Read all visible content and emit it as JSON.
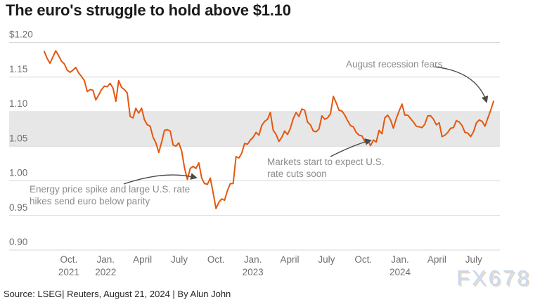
{
  "title": "The euro's struggle to hold above $1.10",
  "source_line": "Source: LSEG| Reuters, August 21, 2024 | By Alun John",
  "watermark": "FX678",
  "colors": {
    "line": "#e5570f",
    "band": "#e7e7e7",
    "gridline": "#d8d8d8",
    "axis_text": "#6f6f6f",
    "annotation_text": "#8c8c8c",
    "arrow": "#4a4a4a",
    "title_text": "#1a1a1a",
    "source_text": "#262626",
    "watermark_fill": "#c9d9ef"
  },
  "annotations": [
    {
      "id": "energy-price-spike",
      "text": "Energy price spike and large U.S. rate\nhikes send euro below parity"
    },
    {
      "id": "rate-cut-expectations",
      "text": "Markets start to expect U.S.\nrate cuts soon"
    },
    {
      "id": "august-recession-fears",
      "text": "August recession fears"
    }
  ],
  "chart_data": {
    "type": "line",
    "title": "The euro's struggle to hold above $1.10",
    "xlabel": "",
    "ylabel": "",
    "grid": true,
    "legend": false,
    "y_axis": {
      "range": [
        0.9,
        1.2
      ],
      "ticks": [
        {
          "label": "$1.20",
          "value": 1.2
        },
        {
          "label": "1.15",
          "value": 1.15
        },
        {
          "label": "1.10",
          "value": 1.1
        },
        {
          "label": "1.05",
          "value": 1.05
        },
        {
          "label": "1.00",
          "value": 1.0
        },
        {
          "label": "0.95",
          "value": 0.95
        },
        {
          "label": "0.90",
          "value": 0.9
        }
      ],
      "highlight_band": {
        "from": 1.05,
        "to": 1.1
      }
    },
    "x_axis": {
      "start": "2021-08",
      "end": "2024-08",
      "ticks": [
        {
          "label": "Oct.",
          "year": "2021",
          "month_index": 2
        },
        {
          "label": "Jan.",
          "year": "2022",
          "month_index": 5
        },
        {
          "label": "April",
          "year": "",
          "month_index": 8
        },
        {
          "label": "July",
          "year": "",
          "month_index": 11
        },
        {
          "label": "Oct.",
          "year": "",
          "month_index": 14
        },
        {
          "label": "Jan.",
          "year": "2023",
          "month_index": 17
        },
        {
          "label": "April",
          "year": "",
          "month_index": 20
        },
        {
          "label": "July",
          "year": "",
          "month_index": 23
        },
        {
          "label": "Oct.",
          "year": "",
          "month_index": 26
        },
        {
          "label": "Jan.",
          "year": "2024",
          "month_index": 29
        },
        {
          "label": "April",
          "year": "",
          "month_index": 32
        },
        {
          "label": "July",
          "year": "",
          "month_index": 35
        }
      ]
    },
    "series": [
      {
        "name": "euro-dollar-exchange-rate",
        "interval": "weekly",
        "start": "2021-08-01",
        "values": [
          1.187,
          1.177,
          1.17,
          1.179,
          1.188,
          1.181,
          1.173,
          1.169,
          1.16,
          1.157,
          1.16,
          1.164,
          1.156,
          1.151,
          1.145,
          1.129,
          1.132,
          1.131,
          1.117,
          1.124,
          1.132,
          1.137,
          1.136,
          1.141,
          1.134,
          1.115,
          1.145,
          1.135,
          1.132,
          1.127,
          1.093,
          1.091,
          1.105,
          1.098,
          1.105,
          1.088,
          1.081,
          1.079,
          1.063,
          1.055,
          1.041,
          1.056,
          1.073,
          1.074,
          1.072,
          1.052,
          1.05,
          1.055,
          1.043,
          1.019,
          1.002,
          1.018,
          1.021,
          1.018,
          1.026,
          1.004,
          0.996,
          0.995,
          1.004,
          0.983,
          0.96,
          0.969,
          0.974,
          0.972,
          0.986,
          0.996,
          0.996,
          1.035,
          1.033,
          1.04,
          1.054,
          1.053,
          1.059,
          1.063,
          1.07,
          1.066,
          1.08,
          1.086,
          1.089,
          1.099,
          1.073,
          1.067,
          1.057,
          1.063,
          1.072,
          1.067,
          1.076,
          1.09,
          1.099,
          1.093,
          1.104,
          1.102,
          1.085,
          1.081,
          1.072,
          1.071,
          1.075,
          1.094,
          1.089,
          1.091,
          1.097,
          1.122,
          1.113,
          1.102,
          1.101,
          1.095,
          1.087,
          1.08,
          1.078,
          1.07,
          1.066,
          1.065,
          1.057,
          1.059,
          1.051,
          1.059,
          1.056,
          1.073,
          1.068,
          1.091,
          1.095,
          1.088,
          1.076,
          1.09,
          1.101,
          1.111,
          1.095,
          1.095,
          1.09,
          1.085,
          1.079,
          1.078,
          1.077,
          1.082,
          1.094,
          1.094,
          1.089,
          1.081,
          1.084,
          1.064,
          1.066,
          1.07,
          1.076,
          1.077,
          1.087,
          1.085,
          1.08,
          1.07,
          1.069,
          1.064,
          1.071,
          1.084,
          1.088,
          1.086,
          1.079,
          1.091,
          1.102,
          1.115
        ]
      }
    ]
  }
}
